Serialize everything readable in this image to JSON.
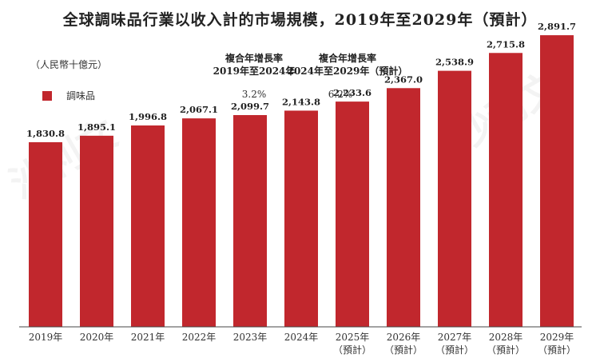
{
  "header": {
    "title": "全球調味品行業以收入計的市場規模，2019年至2029年（預計）",
    "unit": "（人民幣十億元）"
  },
  "cagr": {
    "col1_line1": "複合年增長率",
    "col1_line2": "2019年至2024年",
    "col2_line1": "複合年增長率",
    "col2_line2": "2024年至2029年（預計）",
    "value1": "3.2%",
    "value2": "6.2%"
  },
  "legend": {
    "label": "調味品",
    "color": "#c1272d"
  },
  "watermark": {
    "text1": "沙利文",
    "text2": "沙利文"
  },
  "chart_data": {
    "type": "bar",
    "categories": [
      "2019年",
      "2020年",
      "2021年",
      "2022年",
      "2023年",
      "2024年",
      "2025年",
      "2026年",
      "2027年",
      "2028年",
      "2029年"
    ],
    "category_sublabels": [
      "",
      "",
      "",
      "",
      "",
      "",
      "（預計）",
      "（預計）",
      "（預計）",
      "（預計）",
      "（預計）"
    ],
    "series": [
      {
        "name": "調味品",
        "values": [
          1830.8,
          1895.1,
          1996.8,
          2067.1,
          2099.7,
          2143.8,
          2233.6,
          2367.0,
          2538.9,
          2715.8,
          2891.7
        ]
      }
    ],
    "value_labels": [
      "1,830.8",
      "1,895.1",
      "1,996.8",
      "2,067.1",
      "2,099.7",
      "2,143.8",
      "2,233.6",
      "2,367.0",
      "2,538.9",
      "2,715.8",
      "2,891.7"
    ],
    "title": "全球調味品行業以收入計的市場規模，2019年至2029年（預計）",
    "xlabel": "",
    "ylabel": "（人民幣十億元）",
    "ylim": [
      0,
      3000
    ],
    "grid": false,
    "legend_position": "top-left",
    "bar_color": "#c1272d"
  }
}
